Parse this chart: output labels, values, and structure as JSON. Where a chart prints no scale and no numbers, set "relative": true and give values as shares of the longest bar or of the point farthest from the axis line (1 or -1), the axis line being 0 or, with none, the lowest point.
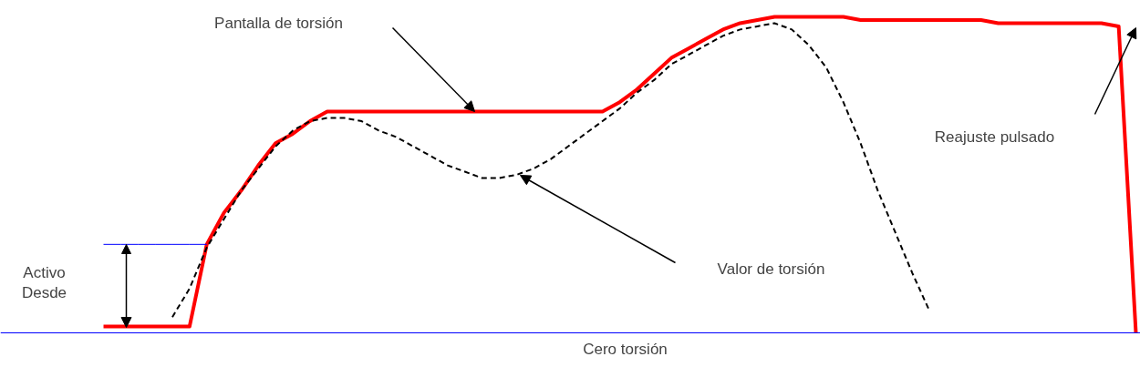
{
  "chart_data": {
    "type": "line",
    "relative": true,
    "categories": [
      null,
      null,
      null,
      null,
      null,
      null,
      null,
      null,
      null,
      null,
      null,
      null,
      null,
      null,
      null,
      null,
      null,
      null,
      null,
      null,
      null,
      null,
      null,
      null,
      null,
      null,
      null,
      null,
      null,
      null,
      null,
      null,
      null,
      null,
      null,
      null,
      null,
      null,
      null,
      null,
      null,
      null,
      null,
      null,
      null,
      null,
      null,
      null,
      null,
      null,
      null,
      null,
      null,
      null,
      null,
      null,
      null,
      null,
      null,
      null,
      null
    ],
    "series": [
      {
        "color": "#ff0000",
        "line_style": "solid",
        "values": [
          0.02,
          0.02,
          0.02,
          0.02,
          0.02,
          0.02,
          0.28,
          0.38,
          0.45,
          0.53,
          0.6,
          0.63,
          0.67,
          0.7,
          0.7,
          0.7,
          0.7,
          0.7,
          0.7,
          0.7,
          0.7,
          0.7,
          0.7,
          0.7,
          0.7,
          0.7,
          0.7,
          0.7,
          0.7,
          0.7,
          0.73,
          0.77,
          0.82,
          0.87,
          0.9,
          0.93,
          0.96,
          0.98,
          0.99,
          1.0,
          1.0,
          1.0,
          1.0,
          1.0,
          0.99,
          0.99,
          0.99,
          0.99,
          0.99,
          0.99,
          0.99,
          0.99,
          0.98,
          0.98,
          0.98,
          0.98,
          0.98,
          0.98,
          0.98,
          0.97,
          0
        ]
      },
      {
        "color": "#000000",
        "line_style": "dashed",
        "values": [
          null,
          null,
          null,
          null,
          0.05,
          0.14,
          0.27,
          0.36,
          0.45,
          0.52,
          0.59,
          0.64,
          0.67,
          0.68,
          0.68,
          0.67,
          0.64,
          0.62,
          0.59,
          0.56,
          0.53,
          0.51,
          0.49,
          0.49,
          0.5,
          0.52,
          0.55,
          0.59,
          0.63,
          0.67,
          0.71,
          0.76,
          0.8,
          0.85,
          0.88,
          0.91,
          0.94,
          0.96,
          0.97,
          0.98,
          0.96,
          0.91,
          0.84,
          0.73,
          0.6,
          0.45,
          0.32,
          0.19,
          0.07,
          null,
          null,
          null,
          null,
          null,
          null,
          null,
          null,
          null,
          null,
          null,
          null
        ]
      },
      {
        "color": "#0000ff",
        "line_style": "solid",
        "values": [
          0.28,
          0.28,
          0.28,
          0.28,
          0.28,
          0.28,
          0.28,
          null,
          null,
          null,
          null,
          null,
          null,
          null,
          null,
          null,
          null,
          null,
          null,
          null,
          null,
          null,
          null,
          null,
          null,
          null,
          null,
          null,
          null,
          null,
          null,
          null,
          null,
          null,
          null,
          null,
          null,
          null,
          null,
          null,
          null,
          null,
          null,
          null,
          null,
          null,
          null,
          null,
          null,
          null,
          null,
          null,
          null,
          null,
          null,
          null,
          null,
          null,
          null,
          null,
          null
        ]
      }
    ],
    "ref_lines": [
      {
        "axis": "y",
        "value": 0,
        "label": "Cero torsión",
        "color": "#0000ff"
      }
    ],
    "annotations": [
      "Pantalla de torsión",
      "Valor de torsión",
      "Reajuste pulsado",
      "Activo\nDesde"
    ]
  }
}
